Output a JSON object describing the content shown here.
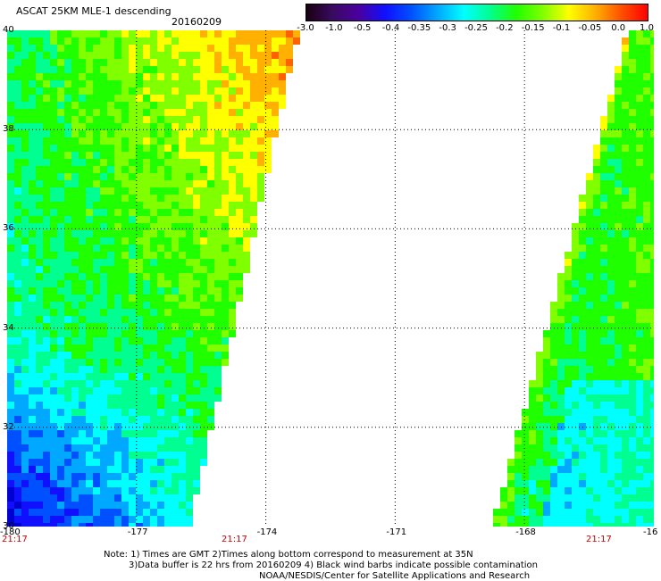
{
  "header": {
    "title": "ASCAT 25KM MLE-1 descending",
    "date": "20160209"
  },
  "colorbar": {
    "ticks": [
      "-3.0",
      "-1.0",
      "-0.5",
      "-0.4",
      "-0.35",
      "-0.3",
      "-0.25",
      "-0.2",
      "-0.15",
      "-0.1",
      "-0.05",
      "0.0",
      "1.0"
    ],
    "colors": [
      "#1a0010",
      "#3a0a60",
      "#4a00a0",
      "#1010ff",
      "#0050ff",
      "#00a8ff",
      "#00ffff",
      "#00ff90",
      "#20ff00",
      "#80ff00",
      "#ffff00",
      "#ffb000",
      "#ff5000",
      "#ff0000"
    ]
  },
  "map": {
    "x_ticks": [
      "-180",
      "-177",
      "-174",
      "-171",
      "-168",
      "-16"
    ],
    "y_ticks": [
      "40",
      "38",
      "36",
      "34",
      "32",
      "30"
    ],
    "lon_range": [
      -180,
      -165
    ],
    "lat_range": [
      30,
      40
    ],
    "grid": "dotted",
    "time_labels": [
      "21:17",
      "21:17",
      "21:17"
    ]
  },
  "notes": {
    "line1": "Note: 1) Times are GMT 2)Times along bottom correspond to measurement at 35N",
    "line2": "3)Data buffer is 22 hrs from 20160209 4) Black wind barbs indicate possible contamination",
    "line3": "NOAA/NESDIS/Center for Satellite Applications and Research"
  }
}
